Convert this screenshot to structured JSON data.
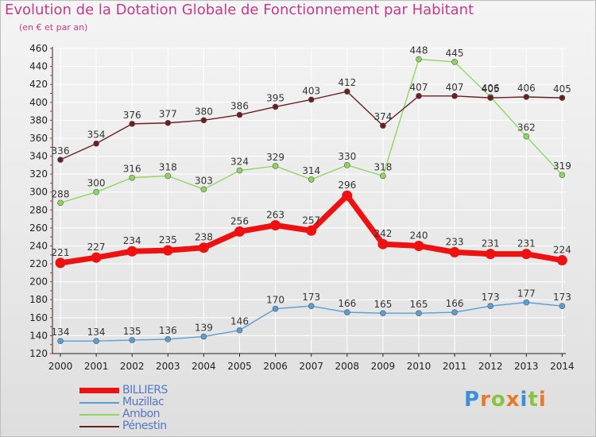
{
  "title": "Evolution de la Dotation Globale de Fonctionnement par Habitant",
  "subtitle": "(en € et par an)",
  "colors": {
    "title": "#c43b8a",
    "axis": "#333333",
    "grid": "#ffffff",
    "legend_text": "#5577c4",
    "logo": [
      "#e8762c",
      "#f2a33a",
      "#3b8fd1",
      "#e8762c",
      "#3b8fd1",
      "#8bc34a"
    ]
  },
  "logo": {
    "letters": [
      "P",
      "r",
      "o",
      "x",
      "i",
      "t",
      "i"
    ],
    "colors": [
      "#3d8fd6",
      "#e8792b",
      "#8ac43f",
      "#e8792b",
      "#3d8fd6",
      "#8ac43f",
      "#e8792b"
    ]
  },
  "chart_data": {
    "type": "line",
    "title": "Evolution de la Dotation Globale de Fonctionnement par Habitant",
    "subtitle": "(en € et par an)",
    "xlabel": "",
    "ylabel": "",
    "x": [
      "2000",
      "2001",
      "2002",
      "2003",
      "2004",
      "2005",
      "2006",
      "2007",
      "2008",
      "2009",
      "2010",
      "2011",
      "2012",
      "2013",
      "2014"
    ],
    "ylim": [
      120,
      460
    ],
    "yticks": [
      120,
      140,
      160,
      180,
      200,
      220,
      240,
      260,
      280,
      300,
      320,
      340,
      360,
      380,
      400,
      420,
      440,
      460
    ],
    "grid": true,
    "legend_position": "bottom-left",
    "series": [
      {
        "name": "BILLIERS",
        "color": "#ee1111",
        "emphasis": true,
        "values": [
          221,
          227,
          234,
          235,
          238,
          256,
          263,
          257,
          296,
          242,
          240,
          233,
          231,
          231,
          224
        ]
      },
      {
        "name": "Muzillac",
        "color": "#5a9fd4",
        "emphasis": false,
        "values": [
          134,
          134,
          135,
          136,
          139,
          146,
          170,
          173,
          166,
          165,
          165,
          166,
          173,
          177,
          173
        ]
      },
      {
        "name": "Ambon",
        "color": "#8fd660",
        "emphasis": false,
        "values": [
          288,
          300,
          316,
          318,
          303,
          324,
          329,
          314,
          330,
          318,
          448,
          445,
          406,
          362,
          319
        ]
      },
      {
        "name": "Pénestin",
        "color": "#6b1f22",
        "emphasis": false,
        "values": [
          336,
          354,
          376,
          377,
          380,
          386,
          395,
          403,
          412,
          374,
          407,
          407,
          405,
          406,
          405
        ]
      }
    ]
  }
}
